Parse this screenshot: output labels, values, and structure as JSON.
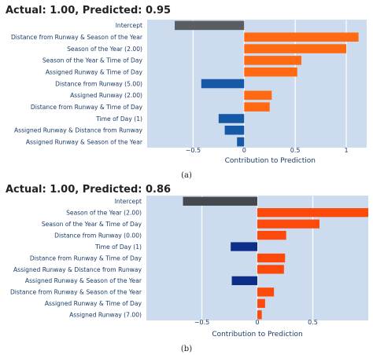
{
  "chart_data": [
    {
      "type": "bar",
      "orientation": "horizontal",
      "title": "Actual: 1.00, Predicted: 0.95",
      "xlabel": "Contribution to Prediction",
      "caption": "(a)",
      "xlim": [
        -0.95,
        1.2
      ],
      "xticks": [
        -0.5,
        0,
        0.5,
        1
      ],
      "xtick_labels": [
        "−0.5",
        "0",
        "0.5",
        "1"
      ],
      "grid": true,
      "bars": [
        {
          "label": "Intercept",
          "value": -0.68,
          "color": "#5a5e63"
        },
        {
          "label": "Distance from Runway & Season of the Year",
          "value": 1.12,
          "color": "#ff6a12"
        },
        {
          "label": "Season of the Year (2.00)",
          "value": 1.0,
          "color": "#ff6a12"
        },
        {
          "label": "Season of the Year & Time of Day",
          "value": 0.56,
          "color": "#ff6a12"
        },
        {
          "label": "Assigned Runway & Time of Day",
          "value": 0.52,
          "color": "#ff6a12"
        },
        {
          "label": "Distance from Runway (5.00)",
          "value": -0.42,
          "color": "#1659a6"
        },
        {
          "label": "Assigned Runway (2.00)",
          "value": 0.27,
          "color": "#ff6a12"
        },
        {
          "label": "Distance from Runway & Time of Day",
          "value": 0.25,
          "color": "#ff6a12"
        },
        {
          "label": "Time of Day (1)",
          "value": -0.25,
          "color": "#1659a6"
        },
        {
          "label": "Assigned Runway & Distance from Runway",
          "value": -0.19,
          "color": "#1659a6"
        },
        {
          "label": "Assigned Runway & Season of the Year",
          "value": -0.07,
          "color": "#1659a6"
        }
      ]
    },
    {
      "type": "bar",
      "orientation": "horizontal",
      "title": "Actual: 1.00, Predicted: 0.86",
      "xlabel": "Contribution to Prediction",
      "caption": "(b)",
      "xlim": [
        -1.0,
        1.0
      ],
      "xticks": [
        -0.5,
        0,
        0.5
      ],
      "xtick_labels": [
        "−0.5",
        "0",
        "0.5"
      ],
      "grid": true,
      "bars": [
        {
          "label": "Intercept",
          "value": -0.67,
          "color": "#45494e"
        },
        {
          "label": "Season of the Year (2.00)",
          "value": 1.0,
          "color": "#fd4a0a"
        },
        {
          "label": "Season of the Year & Time of Day",
          "value": 0.56,
          "color": "#fd4a0a"
        },
        {
          "label": "Distance from Runway (0.00)",
          "value": 0.26,
          "color": "#fd4a0a"
        },
        {
          "label": "Time of Day (1)",
          "value": -0.24,
          "color": "#0d2f8a"
        },
        {
          "label": "Distance from Runway & Time of Day",
          "value": 0.25,
          "color": "#fd4a0a"
        },
        {
          "label": "Assigned Runway & Distance from Runway",
          "value": 0.24,
          "color": "#fd4a0a"
        },
        {
          "label": "Assigned Runway & Season of the Year",
          "value": -0.23,
          "color": "#0d2f8a"
        },
        {
          "label": "Distance from Runway & Season of the Year",
          "value": 0.15,
          "color": "#fd4a0a"
        },
        {
          "label": "Assigned Runway & Time of Day",
          "value": 0.07,
          "color": "#fd4a0a"
        },
        {
          "label": "Assigned Runway (7.00)",
          "value": 0.04,
          "color": "#fd4a0a"
        }
      ]
    }
  ]
}
